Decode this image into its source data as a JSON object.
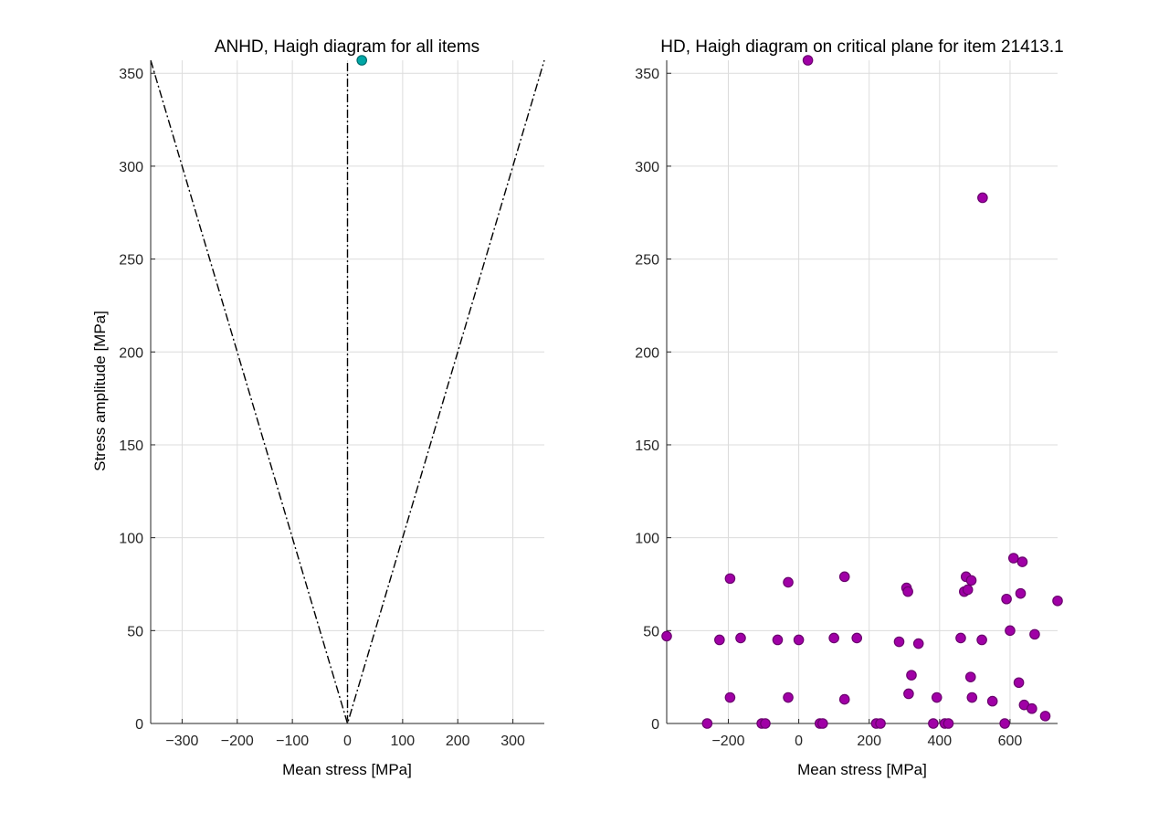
{
  "chart_data": [
    {
      "type": "scatter",
      "title": "ANHD, Haigh diagram for all items",
      "xlabel": "Mean stress [MPa]",
      "ylabel": "Stress amplitude [MPa]",
      "xlim": [
        -357,
        357
      ],
      "ylim": [
        0,
        357
      ],
      "xticks": [
        -300,
        -200,
        -100,
        0,
        100,
        200,
        300
      ],
      "yticks": [
        0,
        50,
        100,
        150,
        200,
        250,
        300,
        350
      ],
      "grid": true,
      "colors": {
        "marker_fill": "#00a6a6",
        "marker_edge": "#006e6e",
        "lines": "#000000"
      },
      "boundary_lines": [
        {
          "x": [
            -357,
            0,
            357
          ],
          "y": [
            357,
            0,
            357
          ]
        },
        {
          "x": [
            0,
            0
          ],
          "y": [
            0,
            357
          ]
        }
      ],
      "points": [
        {
          "x": 26,
          "y": 357
        }
      ]
    },
    {
      "type": "scatter",
      "title": "HD, Haigh diagram on critical plane for item 21413.1",
      "xlabel": "Mean stress [MPa]",
      "ylabel": "",
      "xlim": [
        -375,
        735
      ],
      "ylim": [
        0,
        357
      ],
      "xticks": [
        -200,
        0,
        200,
        400,
        600
      ],
      "yticks": [
        0,
        50,
        100,
        150,
        200,
        250,
        300,
        350
      ],
      "grid": true,
      "colors": {
        "marker_fill": "#a000a6",
        "marker_edge": "#6a006e"
      },
      "points": [
        {
          "x": 26,
          "y": 357
        },
        {
          "x": 522,
          "y": 283
        },
        {
          "x": -375,
          "y": 47
        },
        {
          "x": -195,
          "y": 78
        },
        {
          "x": -30,
          "y": 76
        },
        {
          "x": 130,
          "y": 79
        },
        {
          "x": 306,
          "y": 73
        },
        {
          "x": 310,
          "y": 71
        },
        {
          "x": 470,
          "y": 71
        },
        {
          "x": 475,
          "y": 79
        },
        {
          "x": 480,
          "y": 72
        },
        {
          "x": 490,
          "y": 77
        },
        {
          "x": 610,
          "y": 89
        },
        {
          "x": 635,
          "y": 87
        },
        {
          "x": 590,
          "y": 67
        },
        {
          "x": 630,
          "y": 70
        },
        {
          "x": 735,
          "y": 66
        },
        {
          "x": -225,
          "y": 45
        },
        {
          "x": -165,
          "y": 46
        },
        {
          "x": -60,
          "y": 45
        },
        {
          "x": 0,
          "y": 45
        },
        {
          "x": 100,
          "y": 46
        },
        {
          "x": 165,
          "y": 46
        },
        {
          "x": 285,
          "y": 44
        },
        {
          "x": 340,
          "y": 43
        },
        {
          "x": 460,
          "y": 46
        },
        {
          "x": 520,
          "y": 45
        },
        {
          "x": 600,
          "y": 50
        },
        {
          "x": 670,
          "y": 48
        },
        {
          "x": 320,
          "y": 26
        },
        {
          "x": 488,
          "y": 25
        },
        {
          "x": 625,
          "y": 22
        },
        {
          "x": -195,
          "y": 14
        },
        {
          "x": -30,
          "y": 14
        },
        {
          "x": 130,
          "y": 13
        },
        {
          "x": 312,
          "y": 16
        },
        {
          "x": 392,
          "y": 14
        },
        {
          "x": 492,
          "y": 14
        },
        {
          "x": 550,
          "y": 12
        },
        {
          "x": 640,
          "y": 10
        },
        {
          "x": 662,
          "y": 8
        },
        {
          "x": 700,
          "y": 4
        },
        {
          "x": -260,
          "y": 0
        },
        {
          "x": -105,
          "y": 0
        },
        {
          "x": -95,
          "y": 0
        },
        {
          "x": 60,
          "y": 0
        },
        {
          "x": 68,
          "y": 0
        },
        {
          "x": 220,
          "y": 0
        },
        {
          "x": 232,
          "y": 0
        },
        {
          "x": 382,
          "y": 0
        },
        {
          "x": 415,
          "y": 0
        },
        {
          "x": 425,
          "y": 0
        },
        {
          "x": 585,
          "y": 0
        }
      ]
    }
  ]
}
